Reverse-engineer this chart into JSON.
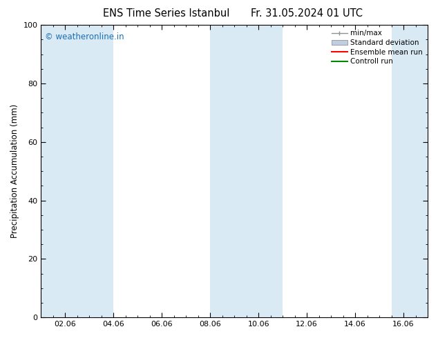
{
  "title_left": "ENS Time Series Istanbul",
  "title_right": "Fr. 31.05.2024 01 UTC",
  "ylabel": "Precipitation Accumulation (mm)",
  "ylim": [
    0,
    100
  ],
  "yticks": [
    0,
    20,
    40,
    60,
    80,
    100
  ],
  "xlim": [
    0,
    16
  ],
  "xtick_positions": [
    1,
    3,
    5,
    7,
    9,
    11,
    13,
    15
  ],
  "xtick_labels": [
    "02.06",
    "04.06",
    "06.06",
    "08.06",
    "10.06",
    "12.06",
    "14.06",
    "16.06"
  ],
  "watermark": "© weatheronline.in",
  "watermark_color": "#1a6eb5",
  "background_color": "#ffffff",
  "plot_bg_color": "#ffffff",
  "shaded_bands": [
    [
      0.0,
      1.5
    ],
    [
      1.5,
      3.0
    ],
    [
      7.0,
      8.5
    ],
    [
      8.5,
      10.0
    ],
    [
      14.5,
      16.0
    ]
  ],
  "band_color": "#daeaf5",
  "legend_labels": [
    "min/max",
    "Standard deviation",
    "Ensemble mean run",
    "Controll run"
  ],
  "minmax_color": "#909090",
  "std_color": "#c0cfe0",
  "ensemble_color": "#ff0000",
  "control_color": "#008800",
  "title_fontsize": 10.5,
  "axis_label_fontsize": 8.5,
  "tick_fontsize": 8,
  "legend_fontsize": 7.5
}
